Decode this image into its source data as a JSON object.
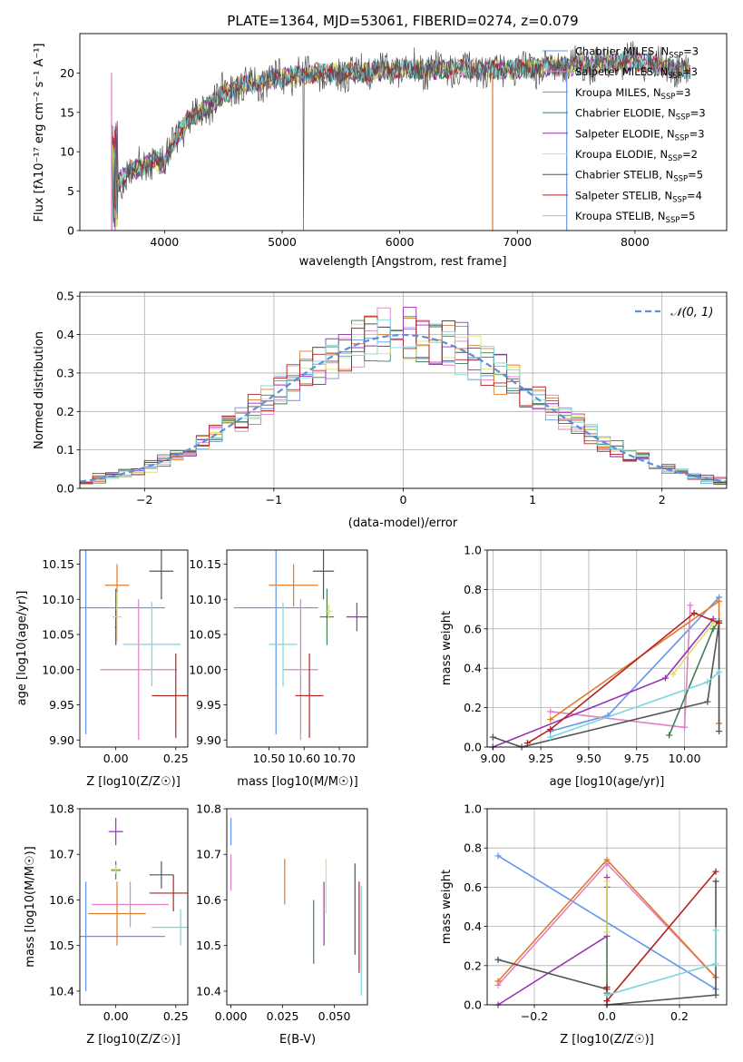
{
  "figure_title": "PLATE=1364, MJD=53061, FIBERID=0274, z=0.079",
  "series_colors": {
    "chabrier_miles": "#6495ed",
    "salpeter_miles": "#e47fc7",
    "kroupa_miles": "#e07b2a",
    "chabrier_elodie": "#3f7d55",
    "salpeter_elodie": "#9a33b5",
    "kroupa_elodie": "#dde06a",
    "chabrier_stelib": "#545454",
    "salpeter_stelib": "#b22222",
    "kroupa_stelib": "#79d6dc"
  },
  "chart_data": [
    {
      "type": "line",
      "id": "spectrum",
      "title": "PLATE=1364, MJD=53061, FIBERID=0274, z=0.079",
      "xlabel": "wavelength [Angstrom, rest frame]",
      "ylabel": "Flux [f_λ 10^-17 erg cm^-2 s^-1 A^-1]",
      "xlim": [
        3280,
        8780
      ],
      "ylim": [
        0,
        25
      ],
      "grid": false,
      "xticks": [
        4000,
        5000,
        6000,
        7000,
        8000
      ],
      "yticks": [
        0,
        5,
        10,
        15,
        20
      ],
      "legend_location": "upper right",
      "legend": [
        "Chabrier MILES, N_SSP=3",
        "Salpeter MILES, N_SSP=3",
        "Kroupa MILES, N_SSP=3",
        "Chabrier ELODIE, N_SSP=3",
        "Salpeter ELODIE, N_SSP=3",
        "Kroupa ELODIE, N_SSP=2",
        "Chabrier STELIB, N_SSP=5",
        "Salpeter STELIB, N_SSP=4",
        "Kroupa STELIB, N_SSP=5"
      ],
      "continuum": {
        "x": [
          3550,
          3600,
          3700,
          3800,
          3900,
          4000,
          4100,
          4200,
          4300,
          4400,
          4500,
          4700,
          5000,
          5300,
          5600,
          6000,
          6500,
          7000,
          7500,
          8000,
          8500
        ],
        "y": [
          5,
          6,
          7.5,
          8,
          9,
          8.5,
          12,
          14,
          15,
          16,
          17.5,
          18.5,
          19.5,
          20,
          20,
          20.5,
          20.5,
          20.5,
          21,
          21.5,
          20
        ]
      }
    },
    {
      "type": "histogram",
      "id": "residuals",
      "xlabel": "(data-model)/error",
      "ylabel": "Normed distribution",
      "xlim": [
        -2.5,
        2.5
      ],
      "ylim": [
        0,
        0.51
      ],
      "grid": true,
      "xticks": [
        -2,
        -1,
        0,
        1,
        2
      ],
      "yticks": [
        0.0,
        0.1,
        0.2,
        0.3,
        0.4,
        0.5
      ],
      "bin_width": 0.1,
      "reference_curve": "N(0,1)",
      "legend": [
        "N(0,1)"
      ]
    },
    {
      "type": "scatter",
      "id": "age_vs_Z",
      "xlabel": "Z [log10(Z/Z☉)]",
      "ylabel": "age [log10(age/yr)]",
      "xlim": [
        -0.15,
        0.3
      ],
      "ylim": [
        9.89,
        10.17
      ],
      "grid": false,
      "xticks": [
        0.0,
        0.25
      ],
      "yticks": [
        9.9,
        9.95,
        10.0,
        10.05,
        10.1,
        10.15
      ],
      "points": [
        {
          "x": -0.125,
          "y": 10.088,
          "xerr": 0.33,
          "yerr": 0.18
        },
        {
          "x": 0.095,
          "y": 10.0,
          "xerr": 0.16,
          "yerr": 0.1
        },
        {
          "x": 0.005,
          "y": 10.12,
          "xerr": 0.05,
          "yerr": 0.03
        },
        {
          "x": 0.0,
          "y": 10.075,
          "xerr": 0.01,
          "yerr": 0.04
        },
        {
          "x": 0.0,
          "y": 10.06,
          "xerr": 0.005,
          "yerr": 0.025
        },
        {
          "x": 0.005,
          "y": 10.075,
          "xerr": 0.02,
          "yerr": 0.035
        },
        {
          "x": 0.19,
          "y": 10.14,
          "xerr": 0.05,
          "yerr": 0.04
        },
        {
          "x": 0.25,
          "y": 9.963,
          "xerr": 0.1,
          "yerr": 0.06
        },
        {
          "x": 0.15,
          "y": 10.036,
          "xerr": 0.12,
          "yerr": 0.06
        }
      ]
    },
    {
      "type": "scatter",
      "id": "age_vs_mass",
      "xlabel": "mass [log10(M/M☉)]",
      "ylabel": "",
      "xlim": [
        10.38,
        10.78
      ],
      "ylim": [
        9.89,
        10.17
      ],
      "grid": false,
      "xticks": [
        10.5,
        10.6,
        10.7
      ],
      "yticks": [
        9.9,
        9.95,
        10.0,
        10.05,
        10.1,
        10.15
      ],
      "points": [
        {
          "x": 10.52,
          "y": 10.088,
          "xerr": 0.12,
          "yerr": 0.18
        },
        {
          "x": 10.59,
          "y": 10.0,
          "xerr": 0.05,
          "yerr": 0.1
        },
        {
          "x": 10.57,
          "y": 10.12,
          "xerr": 0.07,
          "yerr": 0.03
        },
        {
          "x": 10.665,
          "y": 10.075,
          "xerr": 0.02,
          "yerr": 0.04
        },
        {
          "x": 10.75,
          "y": 10.075,
          "xerr": 0.03,
          "yerr": 0.02
        },
        {
          "x": 10.67,
          "y": 10.083,
          "xerr": 0.01,
          "yerr": 0.01
        },
        {
          "x": 10.655,
          "y": 10.14,
          "xerr": 0.03,
          "yerr": 0.04
        },
        {
          "x": 10.615,
          "y": 9.963,
          "xerr": 0.04,
          "yerr": 0.06
        },
        {
          "x": 10.54,
          "y": 10.036,
          "xerr": 0.04,
          "yerr": 0.06
        }
      ]
    },
    {
      "type": "line",
      "id": "mass_weight_vs_age",
      "xlabel": "age [log10(age/yr)]",
      "ylabel": "mass weight",
      "xlim": [
        8.97,
        10.22
      ],
      "ylim": [
        0,
        1.0
      ],
      "grid": true,
      "xticks": [
        9.0,
        9.25,
        9.5,
        9.75,
        10.0
      ],
      "yticks": [
        0.0,
        0.2,
        0.4,
        0.6,
        0.8,
        1.0
      ],
      "series": [
        {
          "x": [
            9.3,
            9.6,
            10.18
          ],
          "y": [
            0.08,
            0.16,
            0.76
          ]
        },
        {
          "x": [
            9.3,
            10.0,
            10.03
          ],
          "y": [
            0.18,
            0.1,
            0.72
          ]
        },
        {
          "x": [
            9.3,
            10.18,
            10.18
          ],
          "y": [
            0.14,
            0.74,
            0.12
          ]
        },
        {
          "x": [
            9.92,
            10.15,
            10.18
          ],
          "y": [
            0.06,
            0.6,
            0.64
          ]
        },
        {
          "x": [
            9.0,
            9.9,
            10.15
          ],
          "y": [
            0.0,
            0.35,
            0.65
          ]
        },
        {
          "x": [
            9.94,
            10.15
          ],
          "y": [
            0.37,
            0.63
          ]
        },
        {
          "x": [
            9.0,
            9.15,
            10.12,
            10.18,
            10.18
          ],
          "y": [
            0.05,
            0.0,
            0.23,
            0.63,
            0.08
          ]
        },
        {
          "x": [
            9.18,
            9.3,
            10.05,
            10.18
          ],
          "y": [
            0.02,
            0.09,
            0.68,
            0.63
          ]
        },
        {
          "x": [
            9.3,
            10.12,
            10.18
          ],
          "y": [
            0.05,
            0.33,
            0.38
          ]
        }
      ]
    },
    {
      "type": "scatter",
      "id": "mass_vs_Z",
      "xlabel": "Z [log10(Z/Z☉)]",
      "ylabel": "mass [log10(M/M☉)]",
      "xlim": [
        -0.15,
        0.3
      ],
      "ylim": [
        10.37,
        10.8
      ],
      "grid": false,
      "xticks": [
        0.0,
        0.25
      ],
      "yticks": [
        10.4,
        10.5,
        10.6,
        10.7,
        10.8
      ],
      "points": [
        {
          "x": -0.125,
          "y": 10.52,
          "xerr": 0.33,
          "yerr": 0.12
        },
        {
          "x": 0.06,
          "y": 10.59,
          "xerr": 0.16,
          "yerr": 0.05
        },
        {
          "x": 0.005,
          "y": 10.57,
          "xerr": 0.12,
          "yerr": 0.07
        },
        {
          "x": 0.0,
          "y": 10.665,
          "xerr": 0.02,
          "yerr": 0.02
        },
        {
          "x": 0.0,
          "y": 10.75,
          "xerr": 0.03,
          "yerr": 0.03
        },
        {
          "x": 0.0,
          "y": 10.667,
          "xerr": 0.02,
          "yerr": 0.01
        },
        {
          "x": 0.19,
          "y": 10.655,
          "xerr": 0.05,
          "yerr": 0.03
        },
        {
          "x": 0.24,
          "y": 10.615,
          "xerr": 0.1,
          "yerr": 0.04
        },
        {
          "x": 0.27,
          "y": 10.54,
          "xerr": 0.12,
          "yerr": 0.04
        }
      ]
    },
    {
      "type": "scatter",
      "id": "mass_vs_ebv",
      "xlabel": "E(B-V)",
      "ylabel": "",
      "xlim": [
        -0.002,
        0.066
      ],
      "ylim": [
        10.37,
        10.8
      ],
      "grid": false,
      "xticks": [
        0.0,
        0.025,
        0.05
      ],
      "yticks": [
        10.4,
        10.5,
        10.6,
        10.7,
        10.8
      ],
      "points": [
        {
          "x": 0.0,
          "y": 10.75,
          "yerr": 0.03
        },
        {
          "x": 0.0,
          "y": 10.66,
          "yerr": 0.04
        },
        {
          "x": 0.026,
          "y": 10.64,
          "yerr": 0.05
        },
        {
          "x": 0.04,
          "y": 10.53,
          "yerr": 0.07
        },
        {
          "x": 0.045,
          "y": 10.57,
          "yerr": 0.07
        },
        {
          "x": 0.046,
          "y": 10.63,
          "yerr": 0.06
        },
        {
          "x": 0.06,
          "y": 10.58,
          "yerr": 0.1
        },
        {
          "x": 0.062,
          "y": 10.54,
          "yerr": 0.1
        },
        {
          "x": 0.063,
          "y": 10.51,
          "yerr": 0.12
        }
      ]
    },
    {
      "type": "line",
      "id": "mass_weight_vs_Z",
      "xlabel": "Z [log10(Z/Z☉)]",
      "ylabel": "mass weight",
      "xlim": [
        -0.33,
        0.33
      ],
      "ylim": [
        0,
        1.0
      ],
      "grid": true,
      "xticks": [
        -0.2,
        0.0,
        0.2
      ],
      "yticks": [
        0.0,
        0.2,
        0.4,
        0.6,
        0.8,
        1.0
      ],
      "series": [
        {
          "x": [
            -0.3,
            0.3
          ],
          "y": [
            0.76,
            0.08
          ]
        },
        {
          "x": [
            -0.3,
            0.0,
            0.3
          ],
          "y": [
            0.1,
            0.72,
            0.14
          ]
        },
        {
          "x": [
            -0.3,
            0.0,
            0.3
          ],
          "y": [
            0.12,
            0.74,
            0.14
          ]
        },
        {
          "x": [
            0.0,
            0.0
          ],
          "y": [
            0.06,
            0.6
          ]
        },
        {
          "x": [
            -0.3,
            0.0,
            0.0
          ],
          "y": [
            0.0,
            0.35,
            0.65
          ]
        },
        {
          "x": [
            0.0,
            0.0
          ],
          "y": [
            0.37,
            0.63
          ]
        },
        {
          "x": [
            -0.3,
            0.0,
            0.0,
            0.3,
            0.3
          ],
          "y": [
            0.23,
            0.08,
            0.0,
            0.05,
            0.63
          ]
        },
        {
          "x": [
            0.0,
            0.0,
            0.3
          ],
          "y": [
            0.09,
            0.02,
            0.68
          ]
        },
        {
          "x": [
            0.0,
            0.3,
            0.3
          ],
          "y": [
            0.05,
            0.21,
            0.38
          ]
        }
      ]
    }
  ]
}
